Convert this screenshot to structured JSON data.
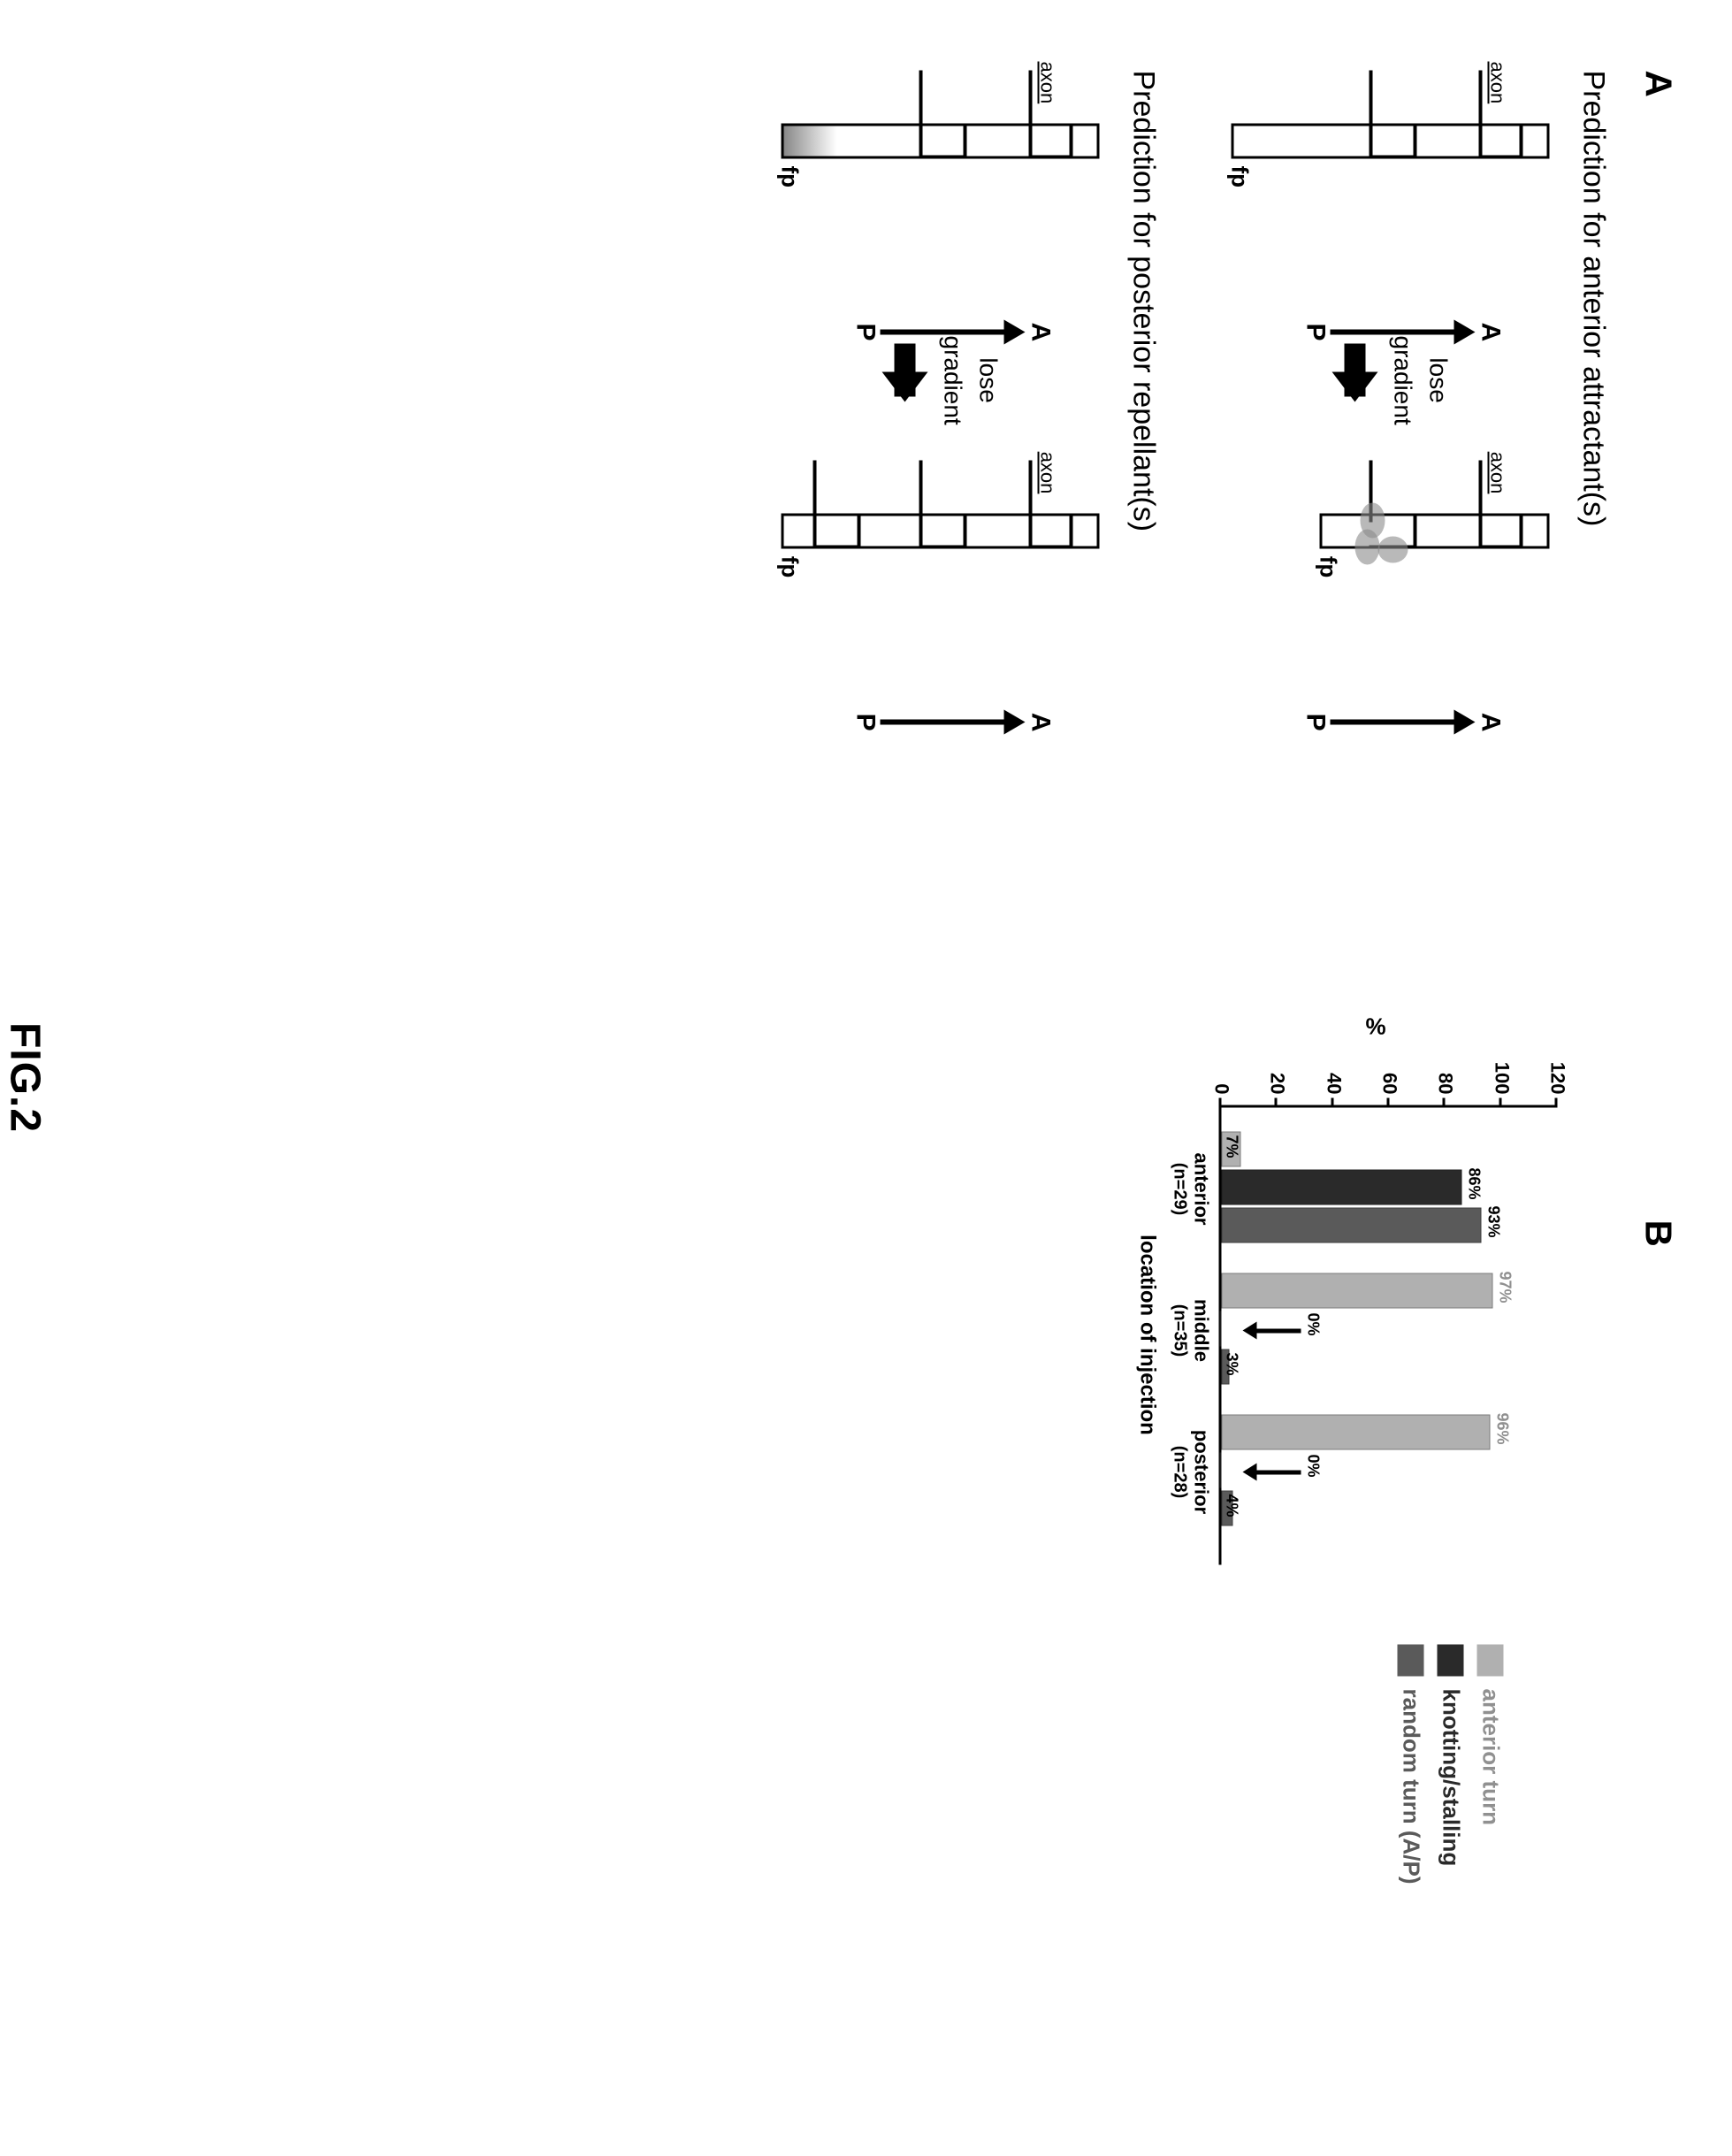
{
  "figure_label": "FIG.2",
  "panelA": {
    "label": "A",
    "prediction1": {
      "title": "Prediction for anterior attractant(s)",
      "lose_text": "lose",
      "gradient_text": "gradient",
      "axon_label": "axon",
      "fp_label": "fp",
      "a_label": "A",
      "p_label": "P"
    },
    "prediction2": {
      "title": "Prediction for posterior repellant(s)",
      "lose_text": "lose",
      "gradient_text": "gradient",
      "axon_label": "axon",
      "fp_label": "fp",
      "a_label": "A",
      "p_label": "P"
    }
  },
  "panelB": {
    "label": "B",
    "chart": {
      "type": "bar",
      "y_label": "%",
      "y_ticks": [
        0,
        20,
        40,
        60,
        80,
        100,
        120
      ],
      "x_label": "location of injection",
      "categories": [
        {
          "name": "anterior",
          "sublabel": "(n=29)"
        },
        {
          "name": "middle",
          "sublabel": "(n=35)"
        },
        {
          "name": "posterior",
          "sublabel": "(n=28)"
        }
      ],
      "groups": [
        {
          "bars": [
            {
              "series": "anterior_turn",
              "value": 7,
              "label": "7%"
            },
            {
              "series": "knotting",
              "value": 86,
              "label": "86%"
            },
            {
              "series": "random",
              "value": 93,
              "label": "93%"
            }
          ]
        },
        {
          "bars": [
            {
              "series": "anterior_turn",
              "value": 97,
              "label": "97%"
            },
            {
              "series": "knotting",
              "value": 0,
              "label": "0%",
              "arrow": true
            },
            {
              "series": "random",
              "value": 3,
              "label": "3%"
            }
          ]
        },
        {
          "bars": [
            {
              "series": "anterior_turn",
              "value": 96,
              "label": "96%"
            },
            {
              "series": "knotting",
              "value": 0,
              "label": "0%",
              "arrow": true
            },
            {
              "series": "random",
              "value": 4,
              "label": "4%"
            }
          ]
        }
      ],
      "colors": {
        "anterior_turn": "#b0b0b0",
        "knotting": "#2a2a2a",
        "random": "#5a5a5a"
      },
      "legend": [
        {
          "color": "#b0b0b0",
          "text_color": "#909090",
          "label": "anterior turn"
        },
        {
          "color": "#2a2a2a",
          "text_color": "#2a2a2a",
          "label": "knotting/stalling"
        },
        {
          "color": "#5a5a5a",
          "text_color": "#5a5a5a",
          "label": "random turn (A/P)"
        }
      ]
    }
  }
}
